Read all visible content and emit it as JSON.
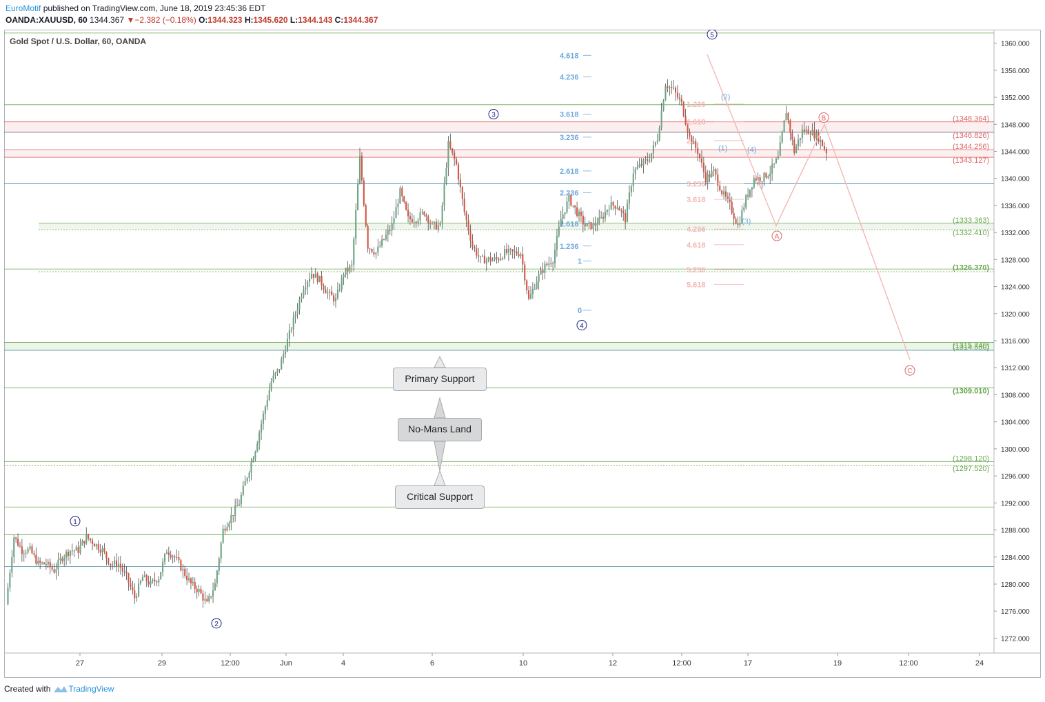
{
  "header": {
    "author": "EuroMotif",
    "published": "published on TradingView.com, June 18, 2019 23:45:36 EDT",
    "symbol": "OANDA:XAUUSD, 60",
    "last": "1344.367",
    "change": "−2.382 (−0.18%)",
    "o_label": "O:",
    "o": "1344.323",
    "h_label": "H:",
    "h": "1345.620",
    "l_label": "L:",
    "l": "1344.143",
    "c_label": "C:",
    "c": "1344.367"
  },
  "footer": {
    "created": "Created with",
    "brand": "TradingView"
  },
  "callouts": {
    "primary": "Primary Support",
    "nomans": "No-Mans Land",
    "critical": "Critical Support"
  },
  "colors": {
    "up": "#6ba583",
    "down": "#d75442",
    "green_line": "#6aa84f",
    "blue_line": "#4a90a4",
    "red_zone": "#e06666",
    "fib_blue": "#6fa8dc",
    "fib_pink": "#f4b6b6",
    "wave_navy": "#1a237e",
    "wave_red": "#e06666"
  },
  "chart_data": {
    "type": "candlestick",
    "title": "Gold Spot / U.S. Dollar, 60, OANDA",
    "ylim": [
      1269.8,
      1362.0
    ],
    "y_ticks": [
      "1272.000",
      "1276.000",
      "1280.000",
      "1284.000",
      "1288.000",
      "1292.000",
      "1296.000",
      "1300.000",
      "1304.000",
      "1308.000",
      "1312.000",
      "1316.000",
      "1320.000",
      "1324.000",
      "1328.000",
      "1332.000",
      "1336.000",
      "1340.000",
      "1344.000",
      "1348.000",
      "1352.000",
      "1356.000",
      "1360.000"
    ],
    "x_ticks": [
      "27",
      "29",
      "12:00",
      "Jun",
      "4",
      "6",
      "10",
      "12",
      "12:00",
      "17",
      "19",
      "12:00",
      "24"
    ],
    "level_labels_red": [
      "(1348.364)",
      "(1346.826)",
      "(1344.256)",
      "(1343.127)"
    ],
    "level_labels_green": [
      "(1333.363)",
      "(1332.410)",
      "(1326.370)",
      "(1315.740)",
      "(1314.580)",
      "(1309.010)",
      "(1298.120)",
      "(1297.520)"
    ],
    "fib_blue": [
      "4.618",
      "4.236",
      "3.618",
      "3.236",
      "2.618",
      "2.236",
      "1.618",
      "1.236",
      "1",
      "0"
    ],
    "fib_pink": [
      "1.236",
      "1.618",
      "2.",
      "3.236",
      "3.618",
      "4.236",
      "4.618",
      "5.236",
      "5.618"
    ],
    "waves_primary": [
      "1",
      "2",
      "3",
      "4",
      "5"
    ],
    "waves_minor": [
      "(1)",
      "(2)",
      "(3)",
      "(4)"
    ],
    "waves_correction": [
      "A",
      "B",
      "C"
    ],
    "path": [
      1277,
      1287,
      1285,
      1285,
      1283,
      1283,
      1282,
      1284,
      1285,
      1285,
      1287,
      1286,
      1285,
      1283,
      1283,
      1281,
      1278,
      1281,
      1280,
      1281,
      1285,
      1284,
      1282,
      1280,
      1279,
      1277,
      1280,
      1288,
      1290,
      1292,
      1296,
      1300,
      1305,
      1310,
      1312,
      1316,
      1320,
      1324,
      1326,
      1325,
      1323,
      1322,
      1326,
      1327,
      1343,
      1330,
      1329,
      1331,
      1333,
      1338,
      1334,
      1334,
      1335,
      1333,
      1333,
      1345,
      1342,
      1335,
      1330,
      1328,
      1328,
      1328,
      1329,
      1329,
      1329,
      1322,
      1325,
      1327,
      1328,
      1334,
      1337,
      1335,
      1333,
      1333,
      1334,
      1336,
      1336,
      1334,
      1341,
      1342,
      1343,
      1346,
      1354,
      1353,
      1351,
      1346,
      1344,
      1340,
      1341,
      1338,
      1336,
      1333,
      1337,
      1340,
      1340,
      1341,
      1343,
      1350,
      1344,
      1347,
      1347,
      1346,
      1344
    ]
  }
}
